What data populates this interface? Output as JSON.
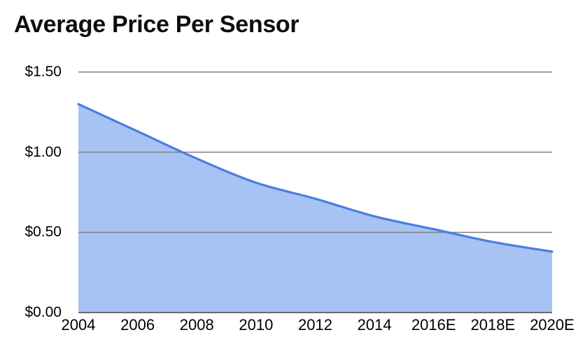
{
  "title": "Average Price Per Sensor",
  "colors": {
    "background": "#ffffff",
    "title_text": "#0d0d0d",
    "axis_text": "#000000",
    "gridline": "#7f7f7f",
    "baseline": "#6a6a6a",
    "series_line": "#4a7de2",
    "series_fill": "#a6c3f3"
  },
  "chart_data": {
    "type": "area",
    "title": "Average Price Per Sensor",
    "x": [
      "2004",
      "2006",
      "2008",
      "2010",
      "2012",
      "2014",
      "2016E",
      "2018E",
      "2020E"
    ],
    "series": [
      {
        "name": "Average Price Per Sensor ($)",
        "values": [
          1.3,
          1.13,
          0.96,
          0.81,
          0.71,
          0.6,
          0.52,
          0.44,
          0.38
        ]
      }
    ],
    "xlabel": "",
    "ylabel": "",
    "ylim": [
      0,
      1.5
    ],
    "yticks": [
      0,
      0.5,
      1.0,
      1.5
    ],
    "ytick_labels": [
      "$0.00",
      "$0.50",
      "$1.00",
      "$1.50"
    ],
    "grid": true,
    "legend": false,
    "curve": "smooth"
  }
}
